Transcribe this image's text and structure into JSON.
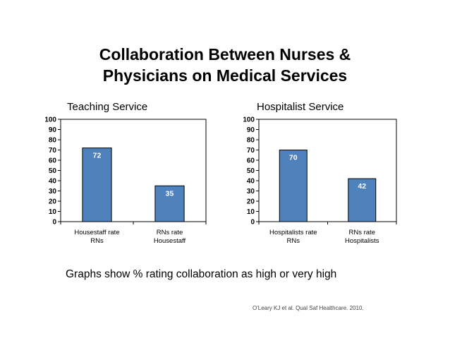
{
  "title_line1": "Collaboration Between Nurses &",
  "title_line2": "Physicians on Medical Services",
  "caption": "Graphs show % rating collaboration as high or very high",
  "citation": "O'Leary KJ et al. Qual Saf Healthcare. 2010.",
  "colors": {
    "bar": "#4f81bd",
    "bar_stroke": "#000000",
    "label": "#ffffff"
  },
  "chart_data": [
    {
      "type": "bar",
      "title": "Teaching Service",
      "categories": [
        "Housestaff rate RNs",
        "RNs rate Housestaff"
      ],
      "category_lines": [
        [
          "Housestaff rate",
          "RNs"
        ],
        [
          "RNs rate",
          "Housestaff"
        ]
      ],
      "values": [
        72,
        35
      ],
      "ylim": [
        0,
        100
      ],
      "yticks": [
        "0",
        "10",
        "20",
        "30",
        "40",
        "50",
        "60",
        "70",
        "80",
        "90",
        "100"
      ],
      "grid": false,
      "data_labels": true
    },
    {
      "type": "bar",
      "title": "Hospitalist Service",
      "categories": [
        "Hospitalists rate RNs",
        "RNs rate Hospitalists"
      ],
      "category_lines": [
        [
          "Hospitalists rate",
          "RNs"
        ],
        [
          "RNs rate",
          "Hospitalists"
        ]
      ],
      "values": [
        70,
        42
      ],
      "ylim": [
        0,
        100
      ],
      "yticks": [
        "0",
        "10",
        "20",
        "30",
        "40",
        "50",
        "60",
        "70",
        "80",
        "90",
        "100"
      ],
      "grid": false,
      "data_labels": true
    }
  ]
}
